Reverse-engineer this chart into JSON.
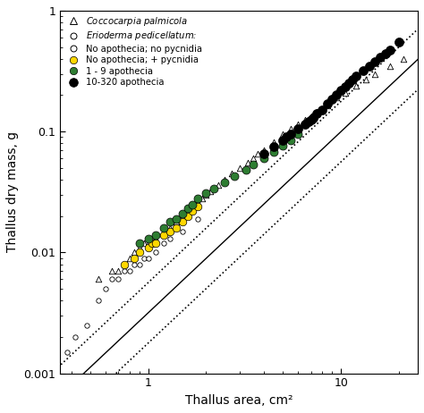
{
  "xlim": [
    0.35,
    25
  ],
  "ylim": [
    0.001,
    1
  ],
  "xlabel": "Thallus area, cm²",
  "ylabel": "Thallus dry mass, g",
  "regression_solid": {
    "slope": 1.5,
    "intercept_log": -2.5
  },
  "regression_upper": {
    "slope": 1.5,
    "intercept_log": -2.25
  },
  "regression_lower": {
    "slope": 1.5,
    "intercept_log": -2.75
  },
  "coccocarpia_x": [
    0.55,
    0.65,
    0.7,
    0.75,
    0.8,
    0.85,
    0.9,
    0.95,
    1.0,
    1.05,
    1.1,
    1.2,
    1.25,
    1.3,
    1.4,
    1.5,
    1.6,
    1.7,
    1.8,
    1.9,
    2.0,
    2.1,
    2.3,
    2.5,
    2.7,
    3.0,
    3.3,
    3.5,
    3.7,
    4.0,
    4.5,
    5.0,
    5.5,
    6.0,
    6.5,
    7.0,
    7.5,
    8.5,
    9.5,
    10.5,
    12.0,
    13.5,
    15.0,
    18.0,
    21.0
  ],
  "coccocarpia_y": [
    0.006,
    0.007,
    0.007,
    0.008,
    0.009,
    0.01,
    0.011,
    0.012,
    0.012,
    0.013,
    0.013,
    0.015,
    0.015,
    0.016,
    0.018,
    0.02,
    0.022,
    0.024,
    0.026,
    0.028,
    0.03,
    0.032,
    0.036,
    0.04,
    0.045,
    0.05,
    0.055,
    0.06,
    0.065,
    0.07,
    0.082,
    0.095,
    0.105,
    0.115,
    0.125,
    0.135,
    0.145,
    0.165,
    0.19,
    0.21,
    0.24,
    0.27,
    0.3,
    0.35,
    0.4
  ],
  "erio_none_x": [
    0.38,
    0.42,
    0.48,
    0.55,
    0.6,
    0.65,
    0.7,
    0.75,
    0.8,
    0.85,
    0.9,
    0.95,
    1.0,
    1.1,
    1.2,
    1.3,
    1.5,
    1.8
  ],
  "erio_none_y": [
    0.0015,
    0.002,
    0.0025,
    0.004,
    0.005,
    0.006,
    0.006,
    0.007,
    0.007,
    0.008,
    0.008,
    0.009,
    0.009,
    0.01,
    0.012,
    0.013,
    0.015,
    0.019
  ],
  "erio_pycnidia_x": [
    0.75,
    0.85,
    0.9,
    1.0,
    1.05,
    1.1,
    1.2,
    1.3,
    1.4,
    1.5,
    1.6,
    1.7,
    1.8
  ],
  "erio_pycnidia_y": [
    0.008,
    0.009,
    0.01,
    0.011,
    0.012,
    0.012,
    0.014,
    0.015,
    0.016,
    0.018,
    0.02,
    0.022,
    0.024
  ],
  "erio_1_9_x": [
    0.9,
    1.0,
    1.1,
    1.2,
    1.3,
    1.4,
    1.5,
    1.6,
    1.7,
    1.8,
    2.0,
    2.2,
    2.5,
    2.8,
    3.2,
    3.5,
    4.0,
    4.5,
    5.0,
    5.5,
    6.0
  ],
  "erio_1_9_y": [
    0.012,
    0.013,
    0.014,
    0.016,
    0.018,
    0.019,
    0.021,
    0.023,
    0.025,
    0.028,
    0.031,
    0.034,
    0.038,
    0.043,
    0.048,
    0.053,
    0.06,
    0.068,
    0.076,
    0.085,
    0.095
  ],
  "erio_10_320_x": [
    4.0,
    4.5,
    5.0,
    5.2,
    5.5,
    6.0,
    6.5,
    6.8,
    7.0,
    7.2,
    7.5,
    8.0,
    8.5,
    9.0,
    9.5,
    10.0,
    10.5,
    11.0,
    11.5,
    12.0,
    13.0,
    14.0,
    15.0,
    16.0,
    17.0,
    18.0,
    20.0
  ],
  "erio_10_320_y": [
    0.065,
    0.075,
    0.085,
    0.09,
    0.095,
    0.105,
    0.115,
    0.12,
    0.125,
    0.13,
    0.14,
    0.15,
    0.17,
    0.185,
    0.2,
    0.22,
    0.235,
    0.25,
    0.27,
    0.29,
    0.32,
    0.35,
    0.38,
    0.41,
    0.44,
    0.47,
    0.55
  ],
  "yellow_color": "#FFD700",
  "green_color": "#2E7D32",
  "black_color": "#000000",
  "white_color": "#FFFFFF"
}
